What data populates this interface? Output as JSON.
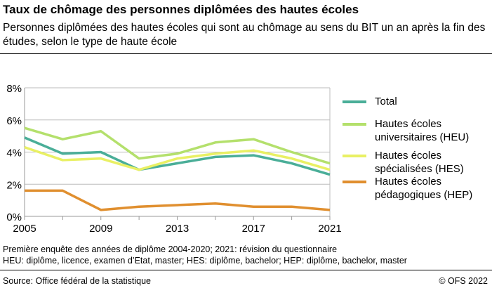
{
  "title": "Taux de chômage des personnes diplômées des hautes écoles",
  "subtitle": "Personnes diplômées des hautes écoles qui sont au chômage au sens du BIT un an après la fin des études, selon le type de haute école",
  "notes": [
    "Première enquête des années de diplôme 2004-2020; 2021: révision du questionnaire",
    "HEU: diplôme, licence, examen d’Etat, master; HES: diplôme, bachelor; HEP: diplôme, bachelor, master"
  ],
  "source": "Source: Office fédéral de la statistique",
  "copyright": "© OFS 2022",
  "chart_data": {
    "type": "line",
    "title": "",
    "xlabel": "",
    "ylabel": "",
    "x": [
      2005,
      2007,
      2009,
      2011,
      2013,
      2015,
      2017,
      2019,
      2021
    ],
    "xticks": [
      "2005",
      "2009",
      "2013",
      "2017",
      "2021"
    ],
    "yticks": [
      "0%",
      "2%",
      "4%",
      "6%",
      "8%"
    ],
    "ylim": [
      0,
      8
    ],
    "xlim": [
      2005,
      2021
    ],
    "grid": "horizontal",
    "legend_placement": "right",
    "series": [
      {
        "name": "Total",
        "color": "#4aae98",
        "values": [
          4.9,
          3.9,
          4.0,
          2.9,
          3.3,
          3.7,
          3.8,
          3.3,
          2.6
        ]
      },
      {
        "name": "Hautes écoles universitaires (HEU)",
        "color": "#b4e06c",
        "values": [
          5.5,
          4.8,
          5.3,
          3.6,
          3.9,
          4.6,
          4.8,
          4.0,
          3.3
        ]
      },
      {
        "name": "Hautes écoles spécialisées (HES)",
        "color": "#e9f064",
        "values": [
          4.3,
          3.5,
          3.6,
          2.9,
          3.6,
          3.9,
          4.1,
          3.6,
          2.9
        ]
      },
      {
        "name": "Hautes écoles pédagogiques (HEP)",
        "color": "#e08f2f",
        "values": [
          1.6,
          1.6,
          0.4,
          0.6,
          0.7,
          0.8,
          0.6,
          0.6,
          0.4
        ]
      }
    ]
  }
}
